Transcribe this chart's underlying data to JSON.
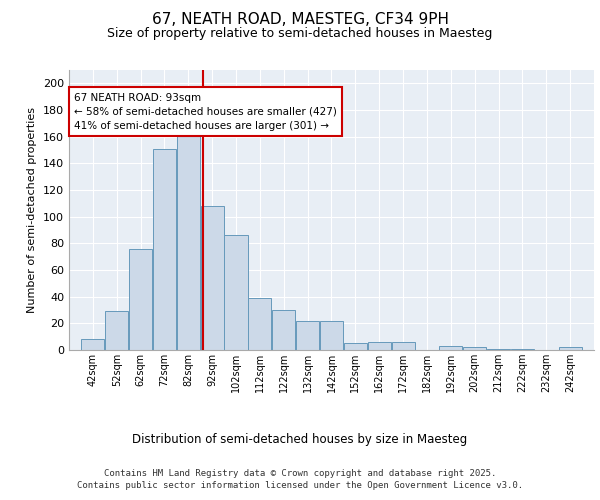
{
  "title_line1": "67, NEATH ROAD, MAESTEG, CF34 9PH",
  "title_line2": "Size of property relative to semi-detached houses in Maesteg",
  "xlabel": "Distribution of semi-detached houses by size in Maesteg",
  "ylabel": "Number of semi-detached properties",
  "bar_edges": [
    42,
    52,
    62,
    72,
    82,
    92,
    102,
    112,
    122,
    132,
    142,
    152,
    162,
    172,
    182,
    192,
    202,
    212,
    222,
    232,
    242,
    252
  ],
  "bar_heights": [
    8,
    29,
    76,
    151,
    162,
    108,
    86,
    39,
    30,
    22,
    22,
    5,
    6,
    6,
    0,
    3,
    2,
    1,
    1,
    0,
    2
  ],
  "bar_color": "#ccd9e8",
  "bar_edge_color": "#6699bb",
  "property_size": 93,
  "vline_color": "#cc0000",
  "annotation_text": "67 NEATH ROAD: 93sqm\n← 58% of semi-detached houses are smaller (427)\n41% of semi-detached houses are larger (301) →",
  "annotation_box_color": "#ffffff",
  "annotation_border_color": "#cc0000",
  "footer_text": "Contains HM Land Registry data © Crown copyright and database right 2025.\nContains public sector information licensed under the Open Government Licence v3.0.",
  "background_color": "#e8eef5",
  "ylim": [
    0,
    210
  ],
  "xlim": [
    37,
    257
  ],
  "yticks": [
    0,
    20,
    40,
    60,
    80,
    100,
    120,
    140,
    160,
    180,
    200
  ]
}
